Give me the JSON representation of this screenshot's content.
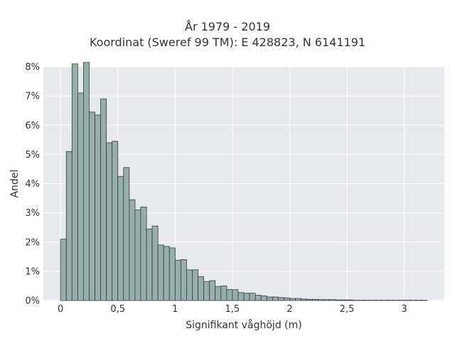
{
  "chart_data": {
    "type": "bar",
    "title": "År 1979 - 2019",
    "subtitle": "Koordinat (Sweref 99 TM): E 428823, N 6141191",
    "xlabel": "Signifikant våghöjd (m)",
    "ylabel": "Andel",
    "xlim": [
      -0.15,
      3.35
    ],
    "ylim": [
      0,
      8.0
    ],
    "x_ticks": [
      0,
      0.5,
      1,
      1.5,
      2,
      2.5,
      3
    ],
    "x_tick_labels": [
      "0",
      "0,5",
      "1",
      "1,5",
      "2",
      "2,5",
      "3"
    ],
    "y_ticks": [
      0,
      1,
      2,
      3,
      4,
      5,
      6,
      7,
      8
    ],
    "y_tick_labels": [
      "0%",
      "1%",
      "2%",
      "3%",
      "4%",
      "5%",
      "6%",
      "7%",
      "8%"
    ],
    "bin_width": 0.05,
    "bin_start": 0.0,
    "values": [
      2.1,
      5.1,
      8.1,
      7.1,
      8.15,
      6.45,
      6.35,
      6.9,
      5.4,
      5.45,
      4.25,
      4.55,
      3.45,
      3.1,
      3.2,
      2.45,
      2.55,
      1.9,
      1.85,
      1.8,
      1.38,
      1.4,
      1.05,
      1.05,
      0.82,
      0.65,
      0.68,
      0.48,
      0.5,
      0.38,
      0.37,
      0.27,
      0.25,
      0.25,
      0.18,
      0.16,
      0.12,
      0.12,
      0.1,
      0.09,
      0.07,
      0.07,
      0.05,
      0.04,
      0.04,
      0.03,
      0.03,
      0.03,
      0.02,
      0.02,
      0.02,
      0.01,
      0.01,
      0.01,
      0.01,
      0.01,
      0.01,
      0.01,
      0.01,
      0.01,
      0.01,
      0.01,
      0.01,
      0.01
    ],
    "colors": {
      "bar_fill": "#98aeae",
      "bar_stroke": "#2f3d3d",
      "plot_bg": "#e8e8f1",
      "grid": "#ffffff",
      "text": "#333333"
    },
    "grid": true,
    "legend": "none"
  }
}
